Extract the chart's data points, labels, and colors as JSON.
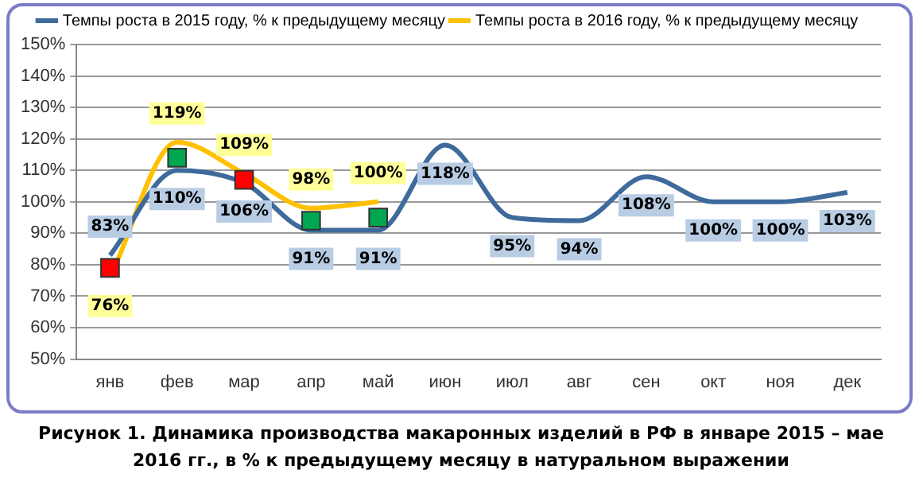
{
  "chart_data": {
    "type": "line",
    "legend": "top",
    "grid": "y",
    "categories": [
      "янв",
      "фев",
      "мар",
      "апр",
      "май",
      "июн",
      "июл",
      "авг",
      "сен",
      "окт",
      "ноя",
      "дек"
    ],
    "ylim": [
      50,
      150
    ],
    "yticks": [
      {
        "value": 50,
        "label": "50%"
      },
      {
        "value": 60,
        "label": "60%"
      },
      {
        "value": 70,
        "label": "70%"
      },
      {
        "value": 80,
        "label": "80%"
      },
      {
        "value": 90,
        "label": "90%"
      },
      {
        "value": 100,
        "label": "100%"
      },
      {
        "value": 110,
        "label": "110%"
      },
      {
        "value": 120,
        "label": "120%"
      },
      {
        "value": 130,
        "label": "130%"
      },
      {
        "value": 140,
        "label": "140%"
      },
      {
        "value": 150,
        "label": "150%"
      }
    ],
    "series": [
      {
        "name": "Темпы роста в 2015 году, % к предыдущему месяцу",
        "color": "#3e6a9c",
        "values": [
          83,
          110,
          106,
          91,
          91,
          118,
          95,
          94,
          108,
          100,
          100,
          103
        ],
        "value_labels": [
          "83%",
          "110%",
          "106%",
          "91%",
          "91%",
          "118%",
          "95%",
          "94%",
          "108%",
          "100%",
          "100%",
          "103%"
        ]
      },
      {
        "name": "Темпы роста в 2016 году, % к предыдущему месяцу",
        "color": "#ffc000",
        "values": [
          76,
          119,
          109,
          98,
          100,
          null,
          null,
          null,
          null,
          null,
          null,
          null
        ],
        "value_labels": [
          "76%",
          "119%",
          "109%",
          "98%",
          "100%",
          null,
          null,
          null,
          null,
          null,
          null,
          null
        ]
      },
      {
        "type": "scatter",
        "marker": "square",
        "x": [
          "янв",
          "фев",
          "мар",
          "апр",
          "май"
        ],
        "values": [
          79,
          114,
          107,
          94,
          95
        ],
        "colors": [
          "#ff0000",
          "#00a650",
          "#ff0000",
          "#00a650",
          "#00a650"
        ]
      }
    ],
    "annotations": [
      "Рисунок 1. Динамика производства макаронных изделий в РФ в январе 2015 – мае 2016 гг., в % к предыдущему месяцу в натуральном выражении"
    ]
  }
}
